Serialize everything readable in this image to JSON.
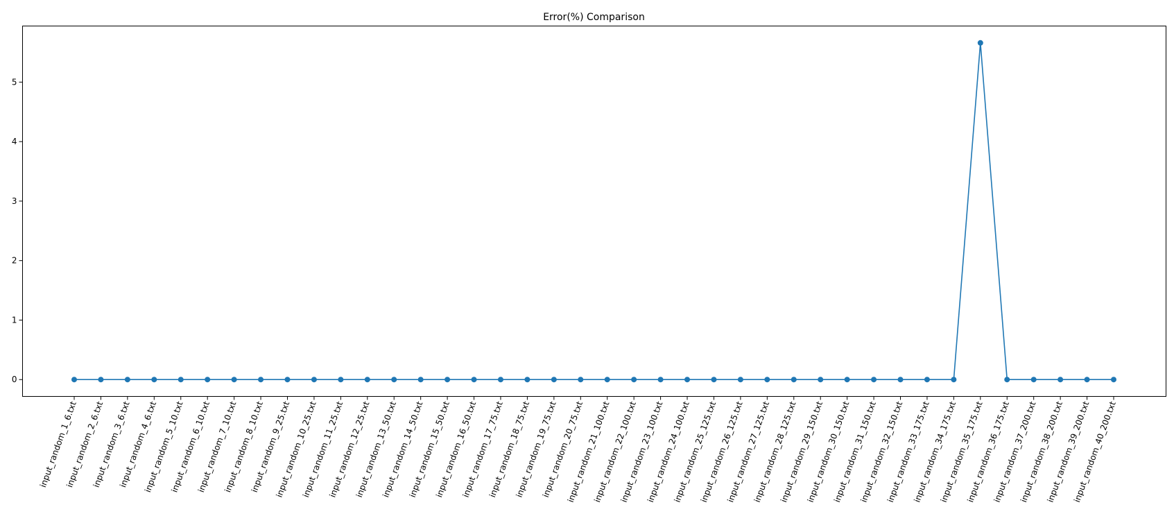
{
  "chart_data": {
    "type": "line",
    "title": "Error(%) Comparison",
    "xlabel": "",
    "ylabel": "",
    "categories": [
      "input_random_1_6.txt",
      "input_random_2_6.txt",
      "input_random_3_6.txt",
      "input_random_4_6.txt",
      "input_random_5_10.txt",
      "input_random_6_10.txt",
      "input_random_7_10.txt",
      "input_random_8_10.txt",
      "input_random_9_25.txt",
      "input_random_10_25.txt",
      "input_random_11_25.txt",
      "input_random_12_25.txt",
      "input_random_13_50.txt",
      "input_random_14_50.txt",
      "input_random_15_50.txt",
      "input_random_16_50.txt",
      "input_random_17_75.txt",
      "input_random_18_75.txt",
      "input_random_19_75.txt",
      "input_random_20_75.txt",
      "input_random_21_100.txt",
      "input_random_22_100.txt",
      "input_random_23_100.txt",
      "input_random_24_100.txt",
      "input_random_25_125.txt",
      "input_random_26_125.txt",
      "input_random_27_125.txt",
      "input_random_28_125.txt",
      "input_random_29_150.txt",
      "input_random_30_150.txt",
      "input_random_31_150.txt",
      "input_random_32_150.txt",
      "input_random_33_175.txt",
      "input_random_34_175.txt",
      "input_random_35_175.txt",
      "input_random_36_175.txt",
      "input_random_37_200.txt",
      "input_random_38_200.txt",
      "input_random_39_200.txt",
      "input_random_40_200.txt"
    ],
    "series": [
      {
        "values": [
          0,
          0,
          0,
          0,
          0,
          0,
          0,
          0,
          0,
          0,
          0,
          0,
          0,
          0,
          0,
          0,
          0,
          0,
          0,
          0,
          0,
          0,
          0,
          0,
          0,
          0,
          0,
          0,
          0,
          0,
          0,
          0,
          0,
          0,
          5.66,
          0,
          0,
          0,
          0,
          0
        ],
        "color": "#1f77b4"
      }
    ],
    "yticks": [
      0,
      1,
      2,
      3,
      4,
      5
    ],
    "ylim": [
      -0.283,
      5.943
    ],
    "grid": false,
    "legend": "none",
    "marker": "circle"
  }
}
